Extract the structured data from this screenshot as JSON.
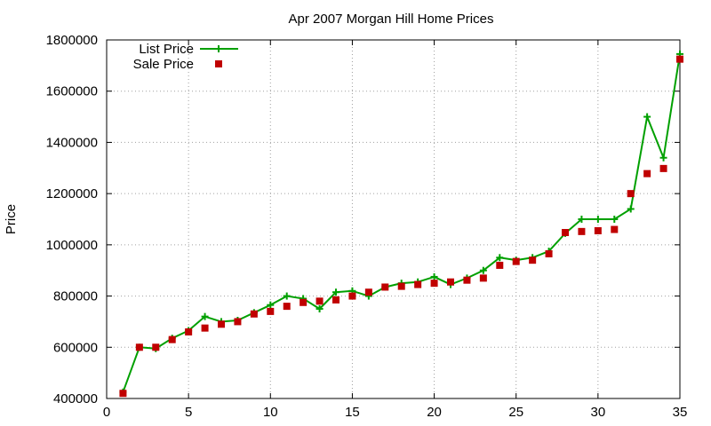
{
  "chart_data": {
    "type": "line",
    "title": "Apr 2007 Morgan Hill Home Prices",
    "xlabel": "",
    "ylabel": "Price",
    "xlim": [
      0,
      35
    ],
    "ylim": [
      400000,
      1800000
    ],
    "x_ticks": [
      0,
      5,
      10,
      15,
      20,
      25,
      30,
      35
    ],
    "y_ticks": [
      400000,
      600000,
      800000,
      1000000,
      1200000,
      1400000,
      1600000,
      1800000
    ],
    "grid": true,
    "legend_position": "top-left",
    "series": [
      {
        "name": "List Price",
        "style": "lines+points",
        "color": "#00a000",
        "marker": "plus",
        "x": [
          1,
          2,
          3,
          4,
          5,
          6,
          7,
          8,
          9,
          10,
          11,
          12,
          13,
          14,
          15,
          16,
          17,
          18,
          19,
          20,
          21,
          22,
          23,
          24,
          25,
          26,
          27,
          28,
          29,
          30,
          31,
          32,
          33,
          34,
          35
        ],
        "values": [
          425000,
          600000,
          595000,
          635000,
          665000,
          720000,
          700000,
          705000,
          735000,
          765000,
          800000,
          790000,
          750000,
          815000,
          820000,
          800000,
          835000,
          850000,
          855000,
          875000,
          845000,
          870000,
          900000,
          950000,
          940000,
          950000,
          975000,
          1045000,
          1100000,
          1100000,
          1100000,
          1140000,
          1500000,
          1340000,
          1745000
        ]
      },
      {
        "name": "Sale Price",
        "style": "points",
        "color": "#c00000",
        "marker": "square",
        "x": [
          1,
          2,
          3,
          4,
          5,
          6,
          7,
          8,
          9,
          10,
          11,
          12,
          13,
          14,
          15,
          16,
          17,
          18,
          19,
          20,
          21,
          22,
          23,
          24,
          25,
          26,
          27,
          28,
          29,
          30,
          31,
          32,
          33,
          34,
          35
        ],
        "values": [
          420000,
          600000,
          600000,
          630000,
          660000,
          675000,
          690000,
          700000,
          730000,
          740000,
          760000,
          775000,
          780000,
          785000,
          800000,
          815000,
          835000,
          838000,
          845000,
          850000,
          855000,
          862000,
          870000,
          920000,
          935000,
          940000,
          965000,
          1048000,
          1052000,
          1055000,
          1060000,
          1200000,
          1278000,
          1298000,
          1725000
        ]
      }
    ]
  }
}
